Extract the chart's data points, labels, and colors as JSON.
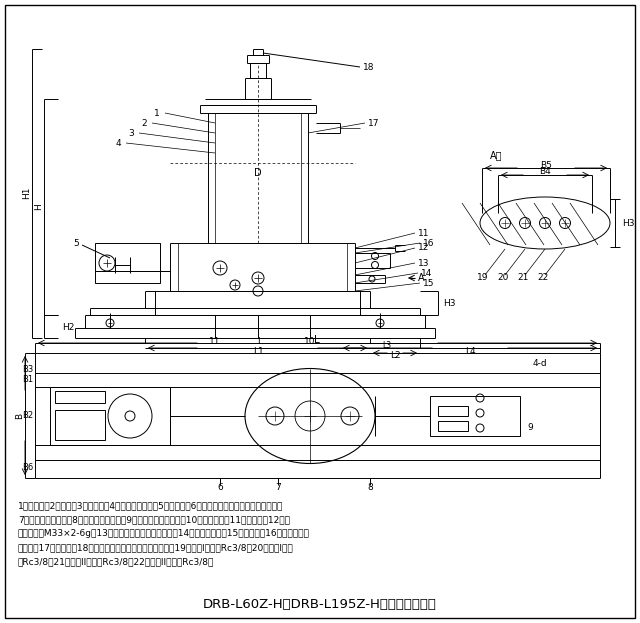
{
  "title": "DRB-L60Z-H、DRB-L195Z-H型电动泵外形图",
  "bg_color": "#ffffff",
  "desc_line1": "1、贯油器；2、泵体；3、排气塞；4、润滑油注入口；5、接线盒；6、排气阀（贯油器活塞下部空气）；",
  "desc_line2": "7、贯油器低位开关；8、贯油器高位开关；9、电磁换向限位开关；10、放油螺塕；11、油位计；12、润",
  "desc_line3": "滑脂补给口M33×2-6g；13、电磁换向阀压力调节螺栓；14、电磁换向阀；15、安全阀；16、排气阀｛出",
  "desc_line4": "油口｝；17、压力表；18、排气阀（贯油器活塞上部空气）；19、管路I出油口Rc3/8；20、管路I回油",
  "desc_line5": "口Rc3/8；21、管路II回油口Rc3/8；22、管路II出油口Rc3/8。",
  "lc": "#000000",
  "fs": 6.5,
  "fs_title": 9.5
}
